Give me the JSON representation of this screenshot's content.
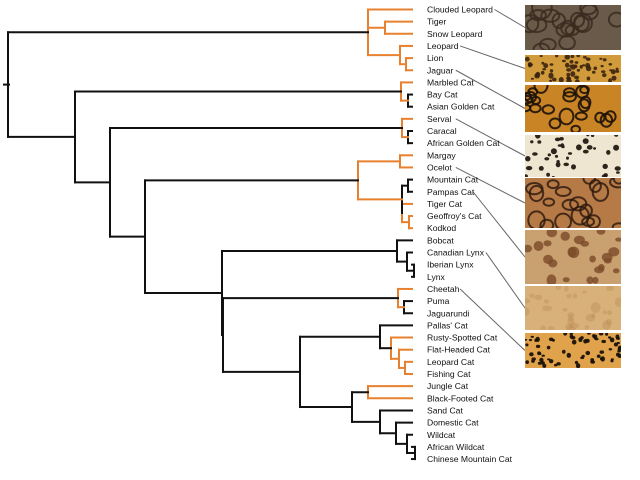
{
  "colors": {
    "black_lineage": "#111111",
    "orange_lineage": "#e8812f",
    "pointer_line": "#666666"
  },
  "tree": {
    "type": "phylogenetic-tree",
    "leaves": [
      "Clouded Leopard",
      "Tiger",
      "Snow Leopard",
      "Leopard",
      "Lion",
      "Jaguar",
      "Marbled Cat",
      "Bay Cat",
      "Asian Golden Cat",
      "Serval",
      "Caracal",
      "African Golden Cat",
      "Margay",
      "Ocelot",
      "Mountain Cat",
      "Pampas Cat",
      "Tiger Cat",
      "Geoffroy's Cat",
      "Kodkod",
      "Bobcat",
      "Canadian Lynx",
      "Iberian Lynx",
      "Lynx",
      "Cheetah",
      "Puma",
      "Jaguarundi",
      "Pallas' Cat",
      "Rusty-Spotted Cat",
      "Flat-Headed Cat",
      "Leopard Cat",
      "Fishing Cat",
      "Jungle Cat",
      "Black-Footed Cat",
      "Sand Cat",
      "Domestic Cat",
      "Wildcat",
      "African Wildcat",
      "Chinese Mountain Cat"
    ]
  },
  "coat_swatches": [
    {
      "name": "clouded-leopard-coat",
      "pattern": "clouded-blotches",
      "linked_leaf": "Clouded Leopard"
    },
    {
      "name": "leopard-coat",
      "pattern": "small-rosettes",
      "linked_leaf": "Leopard"
    },
    {
      "name": "jaguar-coat",
      "pattern": "large-rosettes",
      "linked_leaf": "Jaguar"
    },
    {
      "name": "serval-coat",
      "pattern": "spots-on-cream",
      "linked_leaf": "Serval"
    },
    {
      "name": "ocelot-coat",
      "pattern": "marbled-stripes",
      "linked_leaf": "Ocelot"
    },
    {
      "name": "pampas-cat-coat",
      "pattern": "tawny-blotches",
      "linked_leaf": "Pampas Cat"
    },
    {
      "name": "canadian-lynx-coat",
      "pattern": "plain-fur",
      "linked_leaf": "Canadian Lynx"
    },
    {
      "name": "cheetah-coat",
      "pattern": "solid-spots",
      "linked_leaf": "Cheetah"
    }
  ]
}
